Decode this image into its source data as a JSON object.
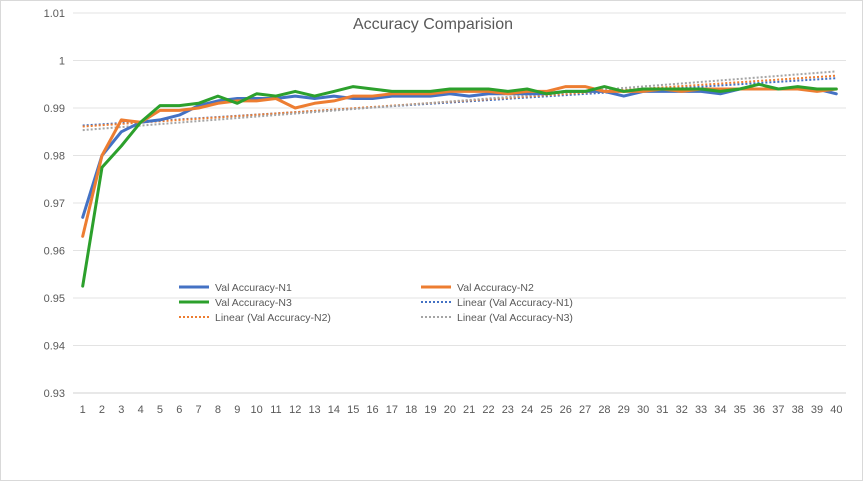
{
  "chart_data": {
    "type": "line",
    "title": "Accuracy Comparision",
    "xlabel": "",
    "ylabel": "",
    "x": [
      1,
      2,
      3,
      4,
      5,
      6,
      7,
      8,
      9,
      10,
      11,
      12,
      13,
      14,
      15,
      16,
      17,
      18,
      19,
      20,
      21,
      22,
      23,
      24,
      25,
      26,
      27,
      28,
      29,
      30,
      31,
      32,
      33,
      34,
      35,
      36,
      37,
      38,
      39,
      40
    ],
    "ylim": [
      0.93,
      1.01
    ],
    "yticks": [
      "0.93",
      "0.94",
      "0.95",
      "0.96",
      "0.97",
      "0.98",
      "0.99",
      "1",
      "1.01"
    ],
    "grid": true,
    "legend_position": "bottom-left",
    "series": [
      {
        "name": "Val Accuracy-N1",
        "color": "#4472c4",
        "style": "solid",
        "values": [
          0.967,
          0.98,
          0.985,
          0.987,
          0.9875,
          0.9885,
          0.9905,
          0.9915,
          0.992,
          0.992,
          0.992,
          0.9925,
          0.992,
          0.9925,
          0.992,
          0.992,
          0.9925,
          0.9925,
          0.9925,
          0.993,
          0.9925,
          0.993,
          0.993,
          0.993,
          0.993,
          0.9935,
          0.9935,
          0.9935,
          0.9925,
          0.9935,
          0.9935,
          0.9935,
          0.9935,
          0.993,
          0.994,
          0.994,
          0.994,
          0.994,
          0.994,
          0.993
        ]
      },
      {
        "name": "Val Accuracy-N2",
        "color": "#ed7d31",
        "style": "solid",
        "values": [
          0.963,
          0.98,
          0.9875,
          0.987,
          0.9895,
          0.9895,
          0.99,
          0.991,
          0.9915,
          0.9915,
          0.992,
          0.99,
          0.991,
          0.9915,
          0.9925,
          0.9925,
          0.993,
          0.993,
          0.993,
          0.9935,
          0.9935,
          0.9935,
          0.993,
          0.9935,
          0.9935,
          0.9945,
          0.9945,
          0.9935,
          0.9935,
          0.9935,
          0.994,
          0.9935,
          0.994,
          0.994,
          0.994,
          0.994,
          0.994,
          0.994,
          0.9935,
          0.994
        ]
      },
      {
        "name": "Val Accuracy-N3",
        "color": "#2ca02c",
        "style": "solid",
        "values": [
          0.9525,
          0.9775,
          0.982,
          0.987,
          0.9905,
          0.9905,
          0.991,
          0.9925,
          0.991,
          0.993,
          0.9925,
          0.9935,
          0.9925,
          0.9935,
          0.9945,
          0.994,
          0.9935,
          0.9935,
          0.9935,
          0.994,
          0.994,
          0.994,
          0.9935,
          0.994,
          0.993,
          0.9935,
          0.9935,
          0.9945,
          0.9935,
          0.994,
          0.994,
          0.994,
          0.994,
          0.9935,
          0.994,
          0.995,
          0.994,
          0.9945,
          0.994,
          0.994
        ]
      },
      {
        "name": "Linear (Val Accuracy-N1)",
        "color": "#4472c4",
        "style": "dotted",
        "trend_of": 0
      },
      {
        "name": "Linear (Val Accuracy-N2)",
        "color": "#ed7d31",
        "style": "dotted",
        "trend_of": 1
      },
      {
        "name": "Linear (Val Accuracy-N3)",
        "color": "#a5a5a5",
        "style": "dotted",
        "trend_of": 2
      }
    ]
  }
}
